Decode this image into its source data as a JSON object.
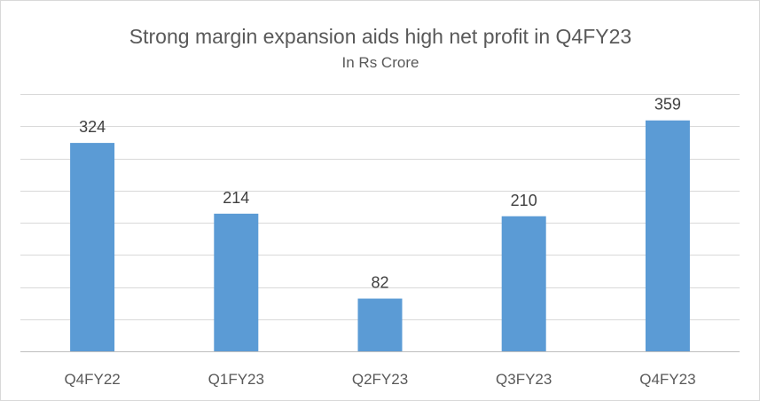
{
  "chart_data": {
    "type": "bar",
    "title": "Strong margin expansion aids high net profit in Q4FY23",
    "subtitle": "In Rs Crore",
    "categories": [
      "Q4FY22",
      "Q1FY23",
      "Q2FY23",
      "Q3FY23",
      "Q4FY23"
    ],
    "values": [
      324,
      214,
      82,
      210,
      359
    ],
    "data_labels": [
      "324",
      "214",
      "82",
      "210",
      "359"
    ],
    "ylim": [
      0,
      400
    ],
    "y_gridlines": [
      0,
      50,
      100,
      150,
      200,
      250,
      300,
      350,
      400
    ],
    "grid": true,
    "legend": "none",
    "bar_color": "#5b9bd5"
  }
}
